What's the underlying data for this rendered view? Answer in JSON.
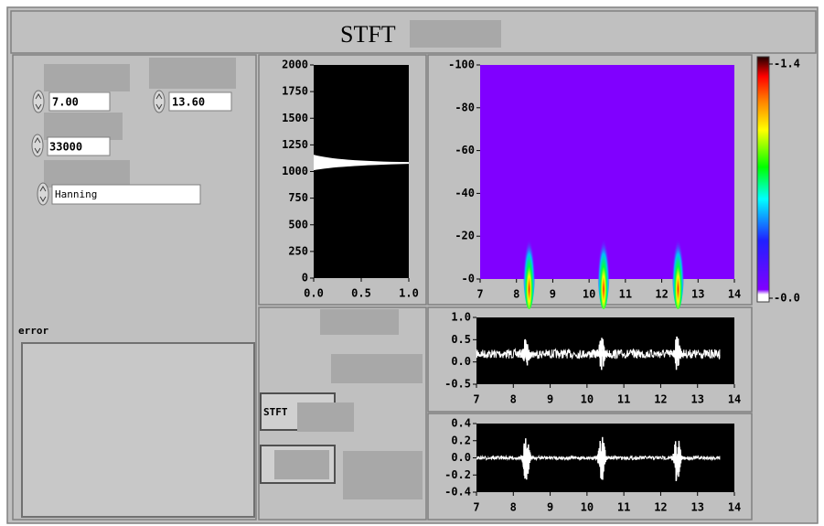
{
  "title": "STFT",
  "controls": {
    "start": "7.00",
    "end": "13.60",
    "rate": "33000",
    "window": "Hanning"
  },
  "error_label": "error",
  "buttons": {
    "stft": "STFT"
  },
  "spectrum_plot": {
    "ylim": [
      0,
      2000
    ],
    "yticks": [
      0,
      250,
      500,
      750,
      1000,
      1250,
      1500,
      1750,
      2000
    ],
    "xlim": [
      0,
      1
    ],
    "xticks": [
      {
        "value": 0,
        "label": "0.0"
      },
      0.5,
      {
        "value": 1,
        "label": "1.0"
      }
    ],
    "peak": 1080
  },
  "spectrogram": {
    "ylim": [
      0,
      -100
    ],
    "yticks": [
      {
        "value": 0,
        "label": "-0"
      },
      -20,
      -40,
      -60,
      -80,
      -100
    ],
    "xlim": [
      7,
      14
    ],
    "xticks": [
      7,
      8,
      9,
      10,
      11,
      12,
      13,
      14
    ],
    "bursts": [
      8.35,
      10.4,
      12.45
    ]
  },
  "colorbar": {
    "ylim": [
      0,
      -1.4
    ],
    "yticks": [
      {
        "value": 0,
        "label": "-0.0"
      },
      -1.4
    ]
  },
  "signal_plot": {
    "ylim": [
      -0.5,
      1
    ],
    "yticks": [
      {
        "value": -0.5,
        "label": "-0.5"
      },
      {
        "value": 0,
        "label": "0.0"
      },
      0.5,
      {
        "value": 1,
        "label": "1.0"
      }
    ],
    "xlim": [
      7,
      14
    ],
    "xticks": [
      7,
      8,
      9,
      10,
      11,
      12,
      13,
      14
    ],
    "baseline": 0.18,
    "end": 13.6,
    "bursts": [
      8.35,
      10.4,
      12.45
    ]
  },
  "filtered_plot": {
    "ylim": [
      -0.4,
      0.4
    ],
    "yticks": [
      -0.4,
      -0.2,
      {
        "value": 0,
        "label": "0.0"
      },
      0.2,
      0.4
    ],
    "xlim": [
      7,
      14
    ],
    "xticks": [
      7,
      8,
      9,
      10,
      11,
      12,
      13,
      14
    ],
    "baseline": 0,
    "end": 13.6,
    "bursts": [
      8.35,
      10.4,
      12.45
    ]
  }
}
